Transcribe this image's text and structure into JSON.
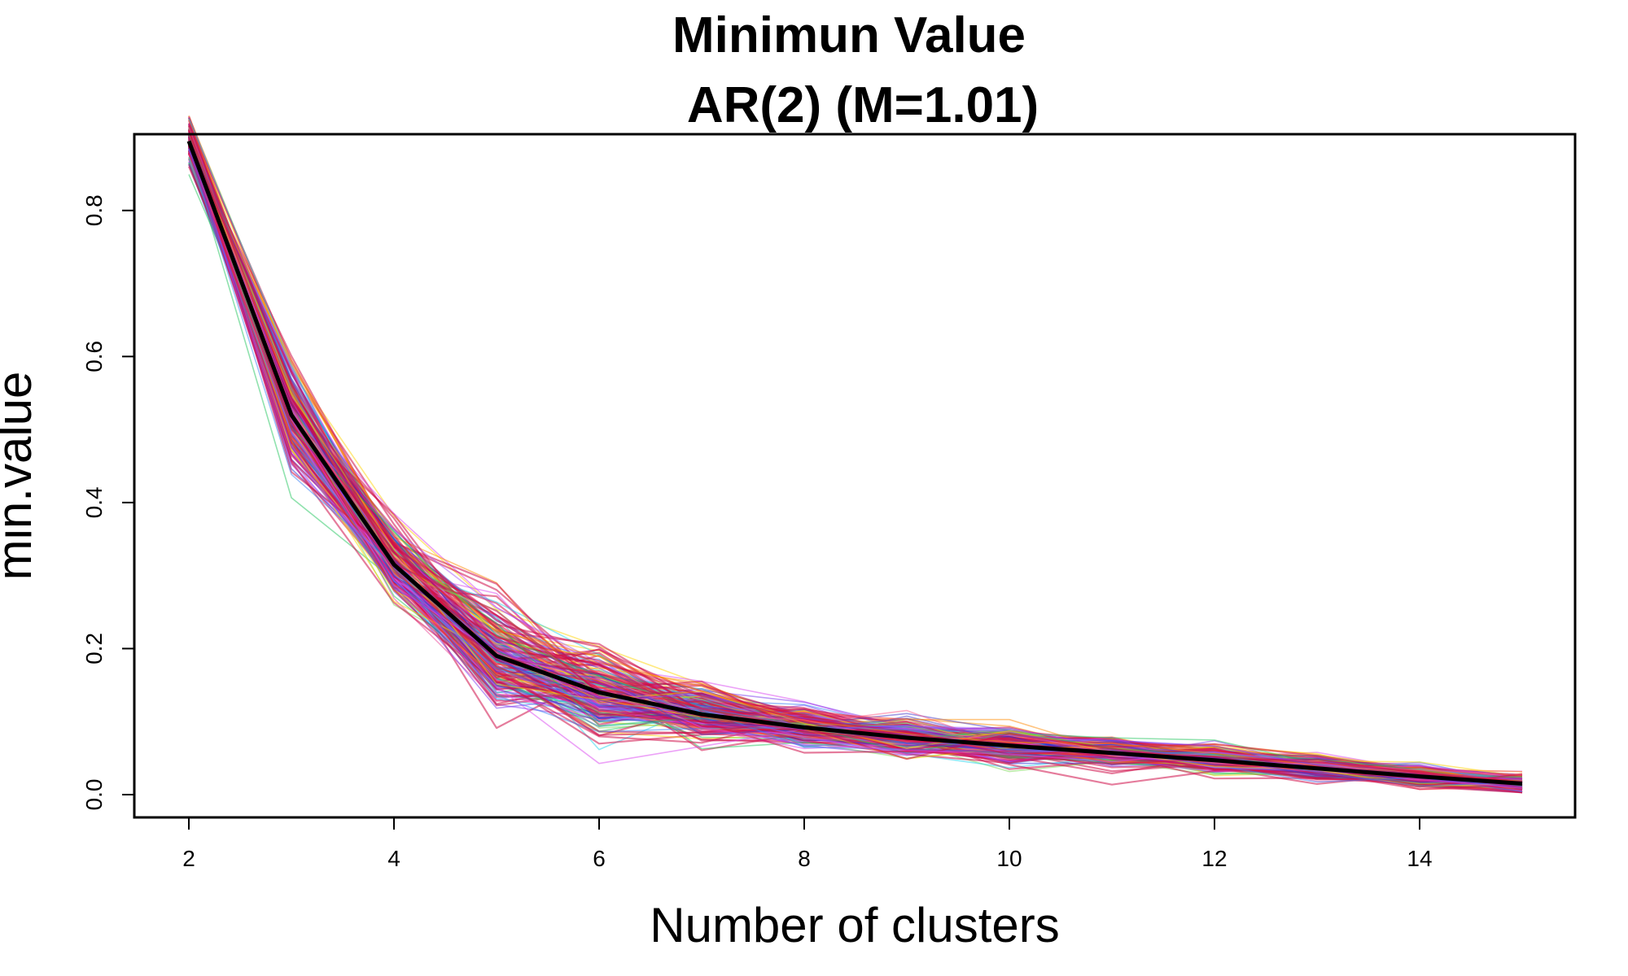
{
  "chart_data": {
    "type": "line",
    "title_line1": "Minimun Value",
    "title_line2": "AR(2) (M=1.01)",
    "xlabel": "Number of clusters",
    "ylabel": "min.value",
    "xlim": [
      2,
      15
    ],
    "ylim": [
      0.0,
      0.9
    ],
    "x_ticks": [
      2,
      4,
      6,
      8,
      10,
      12,
      14
    ],
    "x_tick_labels": [
      "2",
      "4",
      "6",
      "8",
      "10",
      "12",
      "14"
    ],
    "y_ticks": [
      0.0,
      0.2,
      0.4,
      0.6,
      0.8
    ],
    "y_tick_labels": [
      "0.0",
      "0.2",
      "0.4",
      "0.6",
      "0.8"
    ],
    "x": [
      2,
      3,
      4,
      5,
      6,
      7,
      8,
      9,
      10,
      11,
      12,
      13,
      14,
      15
    ],
    "mean_series": {
      "name": "mean",
      "color": "#000000",
      "values": [
        0.895,
        0.52,
        0.315,
        0.19,
        0.14,
        0.11,
        0.092,
        0.078,
        0.067,
        0.057,
        0.047,
        0.036,
        0.025,
        0.015
      ]
    },
    "highlight_color": "#d0104a",
    "simulated_series_count": 220,
    "series_palette": [
      "#ff3b3b",
      "#ff8a00",
      "#ffd400",
      "#7ed957",
      "#22c55e",
      "#1fb6a8",
      "#22d3ee",
      "#3b82f6",
      "#1e2bd6",
      "#4338ca",
      "#7c3aed",
      "#a855f7",
      "#d946ef",
      "#ec4899",
      "#ff5c8a"
    ],
    "grid": false,
    "legend": "none"
  }
}
